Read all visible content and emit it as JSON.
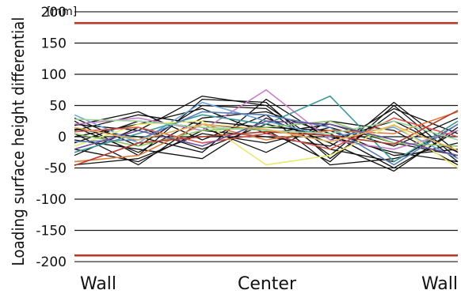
{
  "chart_data": {
    "type": "line",
    "title": "",
    "xlabel": "",
    "ylabel": "Loading surface height differential",
    "unit": "[mm]",
    "x_tick_labels": [
      "Wall",
      "Center",
      "Wall"
    ],
    "x": [
      0,
      1,
      2,
      3,
      4,
      5,
      6
    ],
    "y_ticks": [
      200,
      150,
      100,
      50,
      0,
      -50,
      -100,
      -150,
      -200
    ],
    "y_tick_labels": [
      "200",
      "150",
      "100",
      "50",
      "0",
      "-50",
      "-100",
      "-150",
      "-200"
    ],
    "ylim": [
      -205,
      205
    ],
    "grid": true,
    "legend": "none",
    "reference_lines": [
      {
        "value": 182,
        "color": "#b23a2a"
      },
      {
        "value": -190,
        "color": "#b23a2a"
      }
    ],
    "series": [
      {
        "values": [
          30,
          -15,
          50,
          45,
          -30,
          55,
          -25
        ],
        "color": "#111111"
      },
      {
        "values": [
          25,
          -30,
          60,
          55,
          -35,
          40,
          -40
        ],
        "color": "#111111"
      },
      {
        "values": [
          20,
          10,
          65,
          50,
          -20,
          -40,
          20
        ],
        "color": "#111111"
      },
      {
        "values": [
          15,
          -25,
          30,
          40,
          5,
          -50,
          10
        ],
        "color": "#111111"
      },
      {
        "values": [
          10,
          35,
          20,
          10,
          -40,
          50,
          -35
        ],
        "color": "#111111"
      },
      {
        "values": [
          5,
          -45,
          25,
          15,
          10,
          -30,
          -20
        ],
        "color": "#111111"
      },
      {
        "values": [
          0,
          20,
          45,
          5,
          20,
          -10,
          -30
        ],
        "color": "#111111"
      },
      {
        "values": [
          -5,
          -20,
          -35,
          30,
          -10,
          -55,
          15
        ],
        "color": "#111111"
      },
      {
        "values": [
          -10,
          25,
          15,
          -25,
          25,
          10,
          -45
        ],
        "color": "#111111"
      },
      {
        "values": [
          -20,
          -40,
          10,
          0,
          -15,
          45,
          5
        ],
        "color": "#111111"
      },
      {
        "values": [
          -30,
          15,
          -20,
          20,
          0,
          -25,
          -40
        ],
        "color": "#111111"
      },
      {
        "values": [
          -45,
          -35,
          5,
          -10,
          15,
          -15,
          30
        ],
        "color": "#111111"
      },
      {
        "values": [
          18,
          40,
          -5,
          35,
          -45,
          -35,
          -10
        ],
        "color": "#111111"
      },
      {
        "values": [
          12,
          0,
          -25,
          60,
          -5,
          25,
          -25
        ],
        "color": "#111111"
      },
      {
        "values": [
          35,
          -10,
          55,
          25,
          0,
          15,
          -35
        ],
        "color": "#6fa8dc"
      },
      {
        "values": [
          20,
          30,
          10,
          75,
          -5,
          -20,
          10
        ],
        "color": "#c87fc8"
      },
      {
        "values": [
          -25,
          5,
          35,
          20,
          65,
          -40,
          25
        ],
        "color": "#3c9a9a"
      },
      {
        "values": [
          -40,
          -30,
          20,
          -5,
          10,
          5,
          40
        ],
        "color": "#e07a3c"
      },
      {
        "values": [
          -15,
          20,
          25,
          -45,
          -30,
          20,
          -50
        ],
        "color": "#e8e870"
      },
      {
        "values": [
          5,
          -15,
          10,
          15,
          25,
          -10,
          -15
        ],
        "color": "#8cc86a"
      },
      {
        "values": [
          8,
          15,
          -10,
          5,
          -20,
          30,
          0
        ],
        "color": "#d9534f"
      },
      {
        "values": [
          -8,
          -5,
          40,
          35,
          15,
          -45,
          20
        ],
        "color": "#5b7fb8"
      },
      {
        "values": [
          28,
          25,
          15,
          10,
          5,
          25,
          -5
        ],
        "color": "#9bd49b"
      },
      {
        "values": [
          -20,
          10,
          -15,
          25,
          20,
          -5,
          -30
        ],
        "color": "#6a4f9c"
      },
      {
        "values": [
          -46,
          -10,
          0,
          8,
          2,
          -12,
          42
        ],
        "color": "#b33b2e"
      },
      {
        "values": [
          15,
          -5,
          20,
          12,
          -8,
          18,
          -22
        ],
        "color": "#e6b35c"
      }
    ]
  }
}
